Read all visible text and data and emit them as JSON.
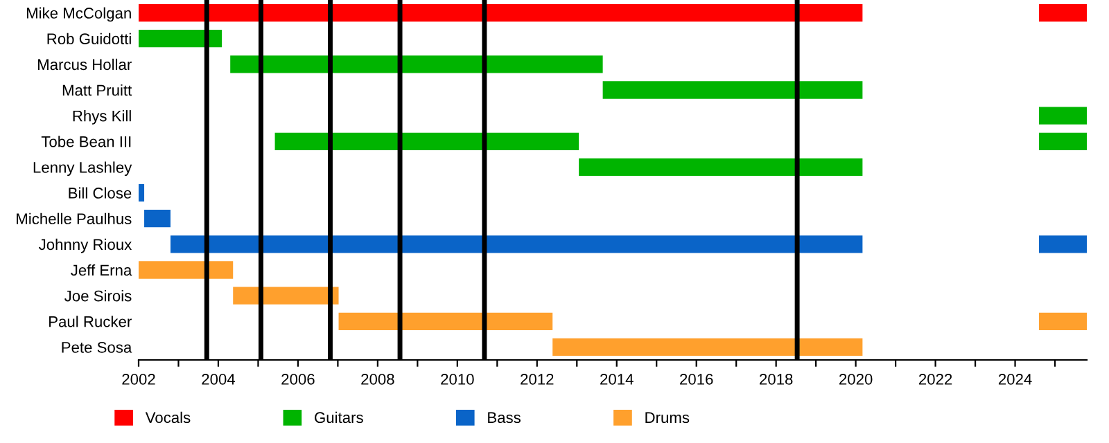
{
  "chart_data": {
    "type": "bar",
    "orientation": "horizontal",
    "legend": "bottom",
    "grid": false,
    "categories": [
      "Mike McColgan",
      "Rob Guidotti",
      "Marcus Hollar",
      "Matt Pruitt",
      "Rhys Kill",
      "Tobe Bean III",
      "Lenny Lashley",
      "Bill Close",
      "Michelle Paulhus",
      "Johnny Rioux",
      "Jeff Erna",
      "Joe Sirois",
      "Paul Rucker",
      "Pete Sosa"
    ],
    "series": [
      {
        "name": "Vocals",
        "color": "#ff0000",
        "base": [
          2002,
          null,
          null,
          null,
          null,
          null,
          null,
          null,
          null,
          null,
          null,
          null,
          null,
          null
        ],
        "values": [
          18.17,
          null,
          null,
          null,
          null,
          null,
          null,
          null,
          null,
          null,
          null,
          null,
          null,
          null
        ]
      },
      {
        "name": "Guitars",
        "color": "#00b400",
        "base": [
          null,
          2002,
          2004.3,
          2013.65,
          null,
          2005.42,
          2013.05,
          null,
          null,
          null,
          null,
          null,
          null,
          null
        ],
        "values": [
          null,
          2.09,
          9.35,
          6.52,
          null,
          7.63,
          7.12,
          null,
          null,
          null,
          null,
          null,
          null,
          null
        ]
      },
      {
        "name": "Bass",
        "color": "#0a64c8",
        "base": [
          null,
          null,
          null,
          null,
          null,
          null,
          null,
          2002,
          2002.14,
          2002.8,
          null,
          null,
          null,
          null
        ],
        "values": [
          null,
          null,
          null,
          null,
          null,
          null,
          null,
          0.14,
          0.66,
          17.37,
          null,
          null,
          null,
          null
        ]
      },
      {
        "name": "Drums",
        "color": "#ffa02d",
        "base": [
          null,
          null,
          null,
          null,
          null,
          null,
          null,
          null,
          null,
          null,
          2002,
          2004.37,
          2007.02,
          2012.39
        ],
        "values": [
          null,
          null,
          null,
          null,
          null,
          null,
          null,
          null,
          null,
          null,
          2.37,
          2.65,
          5.37,
          7.78
        ]
      },
      {
        "color": "#ff0000",
        "base": [
          2024.6,
          null,
          null,
          null,
          null,
          null,
          null,
          null,
          null,
          null,
          null,
          null,
          null,
          null
        ],
        "values": [
          1.2,
          null,
          null,
          null,
          null,
          null,
          null,
          null,
          null,
          null,
          null,
          null,
          null,
          null
        ]
      },
      {
        "color": "#00b400",
        "base": [
          null,
          null,
          null,
          null,
          2024.6,
          2024.6,
          null,
          null,
          null,
          null,
          null,
          null,
          null,
          null
        ],
        "values": [
          null,
          null,
          null,
          null,
          1.2,
          1.2,
          null,
          null,
          null,
          null,
          null,
          null,
          null,
          null
        ]
      },
      {
        "color": "#0a64c8",
        "base": [
          null,
          null,
          null,
          null,
          null,
          null,
          null,
          null,
          null,
          2024.6,
          null,
          null,
          null,
          null
        ],
        "values": [
          null,
          null,
          null,
          null,
          null,
          null,
          null,
          null,
          null,
          1.2,
          null,
          null,
          null,
          null
        ]
      },
      {
        "color": "#ffa02d",
        "base": [
          null,
          null,
          null,
          null,
          null,
          null,
          null,
          null,
          null,
          null,
          null,
          null,
          2024.6,
          null
        ],
        "values": [
          null,
          null,
          null,
          null,
          null,
          null,
          null,
          null,
          null,
          null,
          null,
          null,
          1.2,
          null
        ]
      }
    ],
    "xlim": [
      2002,
      2025.8
    ],
    "xticks": [
      2002,
      {
        "value": 2003,
        "label": null
      },
      2004,
      {
        "value": 2005,
        "label": null
      },
      2006,
      {
        "value": 2007,
        "label": null
      },
      2008,
      {
        "value": 2009,
        "label": null
      },
      2010,
      {
        "value": 2011,
        "label": null
      },
      2012,
      {
        "value": 2013,
        "label": null
      },
      2014,
      {
        "value": 2015,
        "label": null
      },
      2016,
      {
        "value": 2017,
        "label": null
      },
      2018,
      {
        "value": 2019,
        "label": null
      },
      2020,
      {
        "value": 2021,
        "label": null
      },
      2022,
      {
        "value": 2023,
        "label": null
      },
      2024,
      {
        "value": 2025,
        "label": null
      }
    ],
    "ref_lines": [
      {
        "axis": "x",
        "value": 2003.71,
        "color": "#000000"
      },
      {
        "axis": "x",
        "value": 2005.07,
        "color": "#000000"
      },
      {
        "axis": "x",
        "value": 2006.81,
        "color": "#000000"
      },
      {
        "axis": "x",
        "value": 2008.56,
        "color": "#000000"
      },
      {
        "axis": "x",
        "value": 2010.68,
        "color": "#000000"
      },
      {
        "axis": "x",
        "value": 2018.53,
        "color": "#000000"
      }
    ]
  }
}
